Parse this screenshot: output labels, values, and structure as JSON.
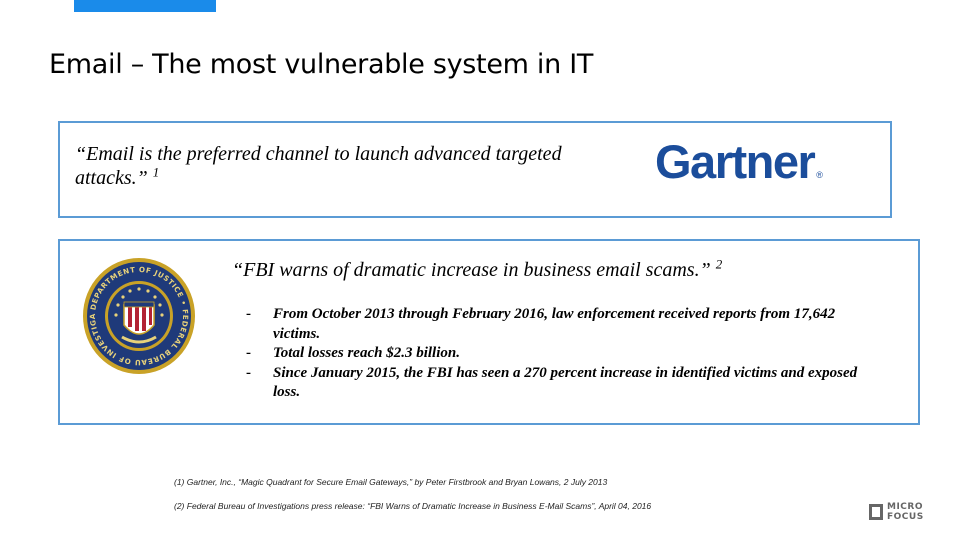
{
  "slide": {
    "title": "Email – The most vulnerable system in IT"
  },
  "gartner_box": {
    "quote": "“Email is the preferred channel to launch advanced targeted attacks.”",
    "footnote_ref": "1",
    "logo_text": "Gartner",
    "logo_reg": "®"
  },
  "fbi_box": {
    "quote": "“FBI warns of dramatic increase in business email scams.”",
    "footnote_ref": "2",
    "seal_text": "DEPARTMENT OF JUSTICE • FEDERAL BUREAU OF INVESTIGATION •",
    "bullets": [
      {
        "marker": "-",
        "text": "From October 2013 through February 2016, law enforcement received reports from 17,642 victims."
      },
      {
        "marker": "-",
        "text": "Total losses reach $2.3 billion."
      },
      {
        "marker": "-",
        "text": "Since January 2015, the FBI has seen a 270 percent increase in identified victims and exposed loss."
      }
    ]
  },
  "footnotes": [
    "(1) Gartner, Inc., “Magic Quadrant for Secure Email Gateways,” by Peter Firstbrook and Bryan Lowans, 2 July 2013",
    "(2) Federal Bureau of Investigations press release: “FBI Warns of Dramatic Increase in Business E-Mail Scams”, April 04, 2016"
  ],
  "brand": {
    "line1": "MICRO",
    "line2": "FOCUS"
  },
  "colors": {
    "accent_bar": "#1a8bea",
    "box_border": "#5b9bd5",
    "gartner_blue": "#1b4d9b",
    "seal_navy": "#1f3a7a",
    "seal_gold": "#c9a227"
  }
}
